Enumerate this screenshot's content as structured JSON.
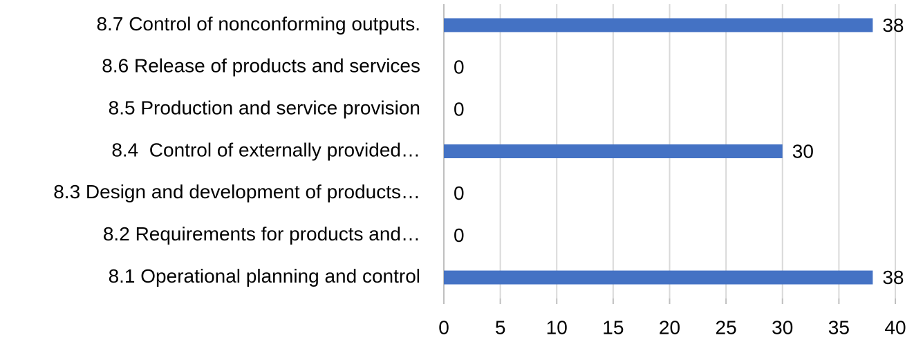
{
  "chart_data": {
    "type": "bar",
    "orientation": "horizontal",
    "categories": [
      "8.7 Control of nonconforming outputs.",
      "8.6 Release of products and services",
      "8.5 Production and service provision",
      "8.4  Control of externally provided…",
      "8.3 Design and development of products…",
      "8.2 Requirements for products and…",
      "8.1 Operational planning and control"
    ],
    "values": [
      38,
      0,
      0,
      30,
      0,
      0,
      38
    ],
    "color": "#4472c4",
    "xlim": [
      0,
      40
    ],
    "xticks": [
      0,
      5,
      10,
      15,
      20,
      25,
      30,
      35,
      40
    ],
    "grid": true
  }
}
